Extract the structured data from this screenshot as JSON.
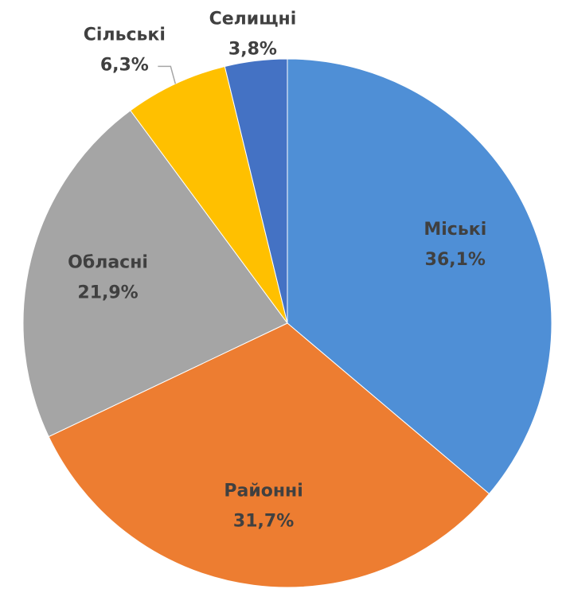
{
  "chart_data": {
    "type": "pie",
    "categories": [
      "Міські",
      "Районні",
      "Обласні",
      "Сільські",
      "Селищні"
    ],
    "values": [
      36.1,
      31.7,
      21.9,
      6.3,
      3.8
    ],
    "value_labels": [
      "36,1%",
      "31,7%",
      "21,9%",
      "6,3%",
      "3,8%"
    ],
    "colors": [
      "#4f8fd6",
      "#ed7d31",
      "#a5a5a5",
      "#ffc000",
      "#4472c4"
    ]
  }
}
